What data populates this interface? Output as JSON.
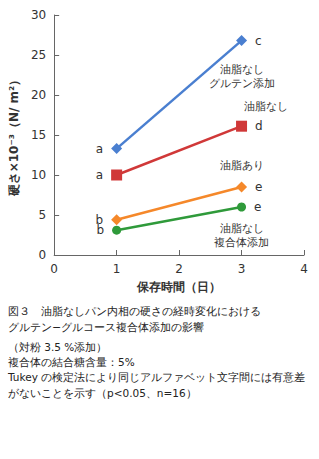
{
  "chart_data": {
    "type": "line",
    "xlabel": "保存時間（日）",
    "ylabel": "硬さ×10⁻³（N/ m²）",
    "xlim": [
      0,
      4
    ],
    "xticks": [
      0,
      1,
      2,
      3,
      4
    ],
    "ylim": [
      0,
      30
    ],
    "yticks": [
      0,
      5,
      10,
      15,
      20,
      25,
      30
    ],
    "grid": false,
    "x": [
      1,
      3
    ],
    "series": [
      {
        "name": "油脂なし\nグルテン添加",
        "color": "#4a7fd0",
        "marker": "diamond",
        "values": [
          13.3,
          26.8
        ],
        "letters": [
          "a",
          "c"
        ]
      },
      {
        "name": "油脂なし",
        "color": "#d03838",
        "marker": "square",
        "values": [
          10.0,
          16.1
        ],
        "letters": [
          "a",
          "d"
        ]
      },
      {
        "name": "油脂あり",
        "color": "#f5882a",
        "marker": "diamond",
        "values": [
          4.4,
          8.5
        ],
        "letters": [
          "b",
          "e"
        ]
      },
      {
        "name": "油脂なし\n複合体添加",
        "color": "#2f9a3a",
        "marker": "circle",
        "values": [
          3.1,
          6.0
        ],
        "letters": [
          "b",
          "e"
        ]
      }
    ],
    "caption": [
      "図３　油脂なしパン内相の硬さの経時変化における\nグルテン−グルコース複合体添加の影響",
      "（対粉 3.5 %添加）",
      "複合体の結合糖含量：5%",
      "Tukey の検定法により同じアルファベット文字間には有意差がないことを示す（p<0.05、n=16）"
    ]
  }
}
